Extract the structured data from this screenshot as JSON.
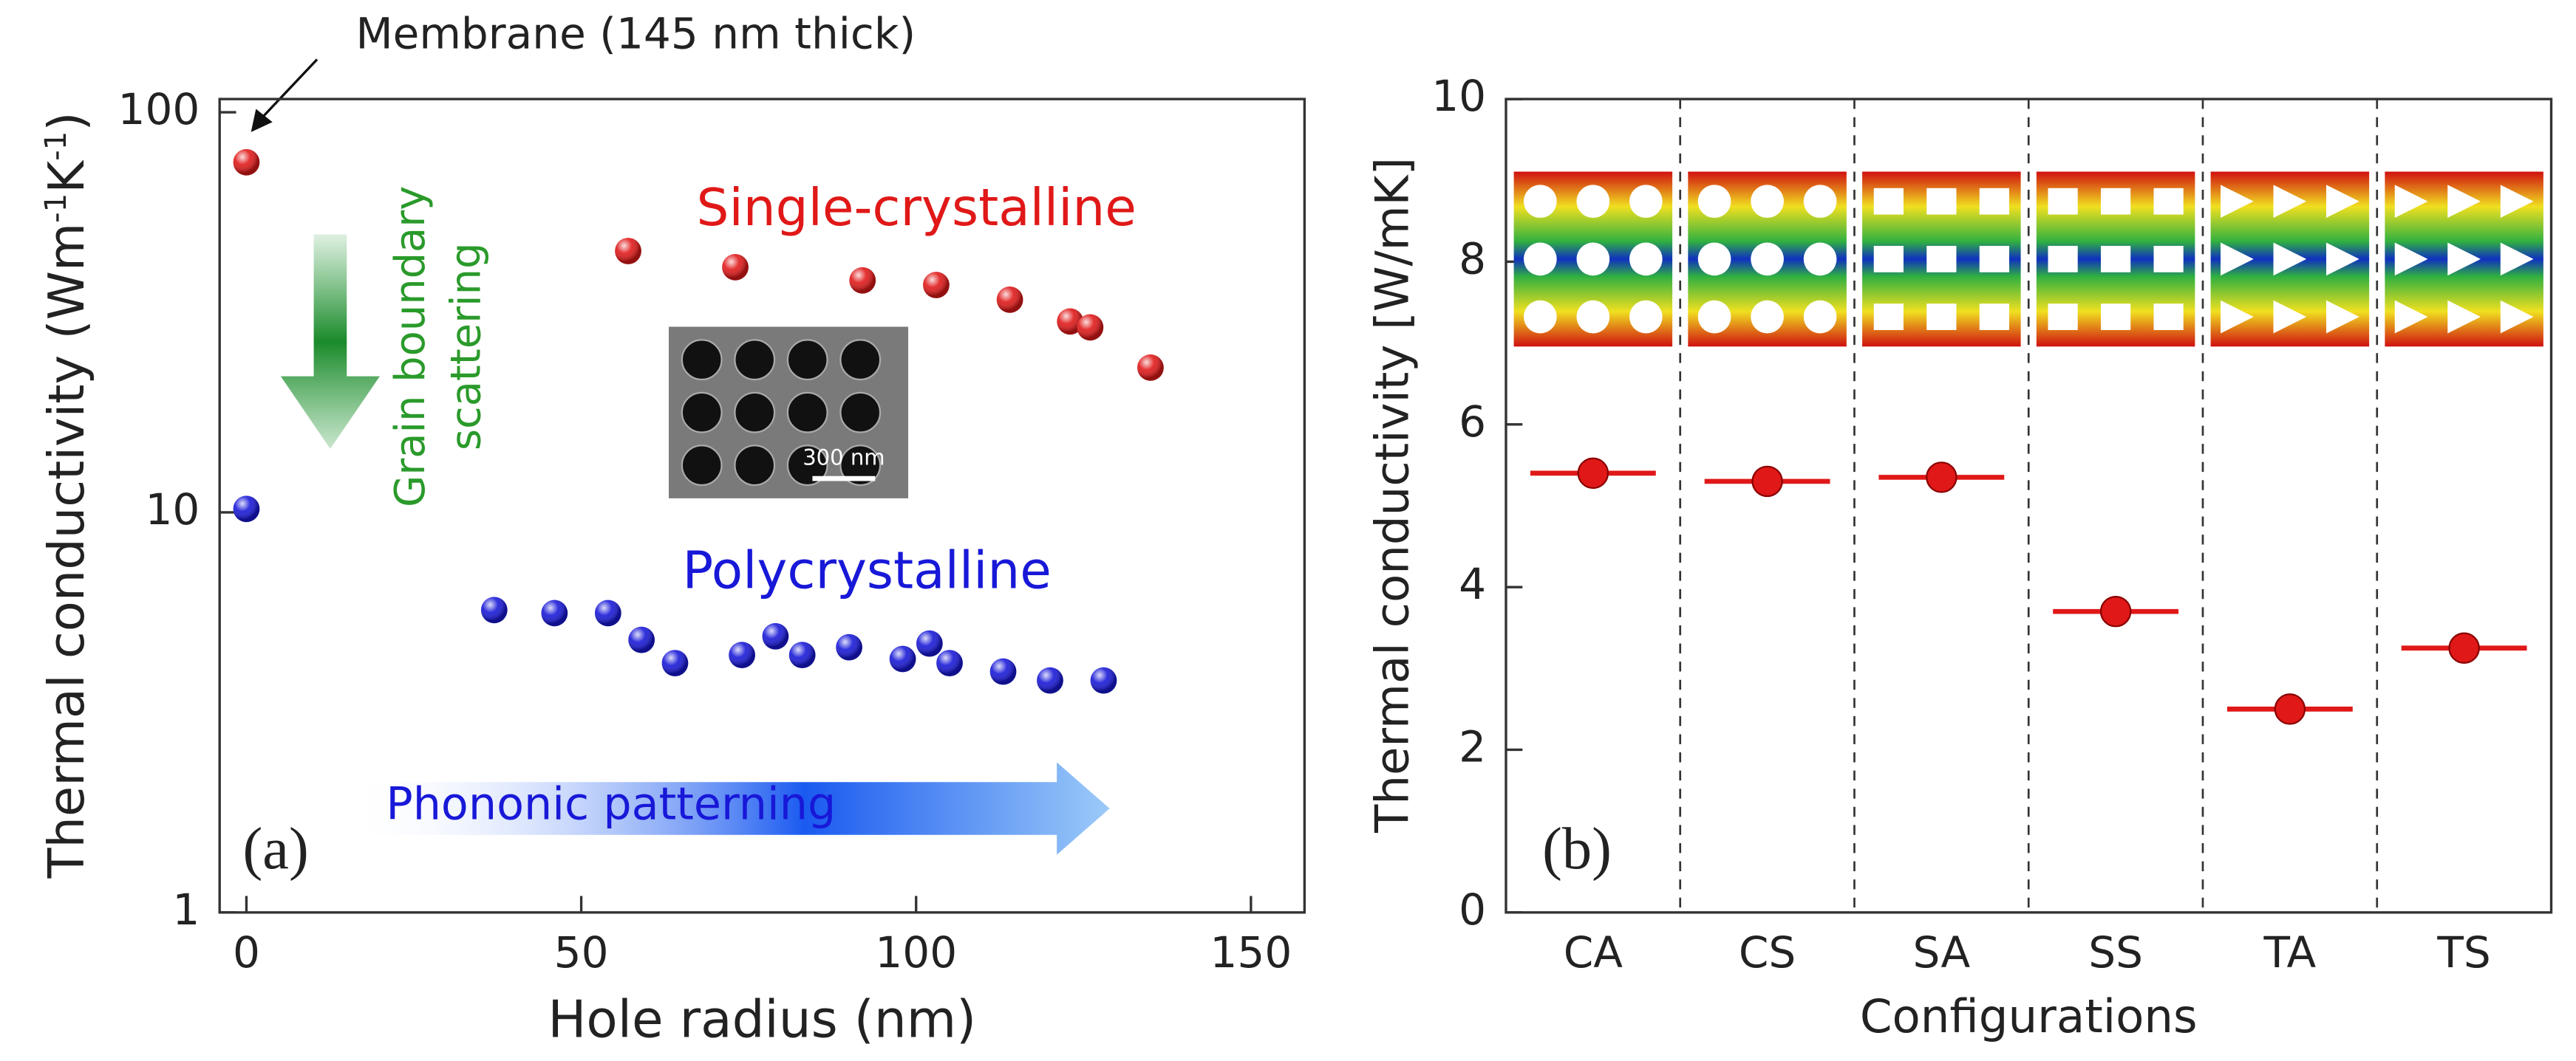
{
  "chart_data": [
    {
      "type": "scatter",
      "panel_label": "(a)",
      "xlabel": "Hole radius (nm)",
      "ylabel": [
        "Thermal conductivity (Wm",
        "-1",
        "K",
        "-1",
        ")"
      ],
      "xlim": [
        -4,
        158
      ],
      "xticks": [
        0,
        50,
        100,
        150
      ],
      "ylim": [
        1,
        100
      ],
      "yticks": [
        1,
        10,
        100
      ],
      "log_y": true,
      "annotations": {
        "membrane": "Membrane (145 nm thick)",
        "grain": [
          "Grain boundary",
          "scattering"
        ],
        "phononic": "Phononic patterning",
        "scale_bar": "300 nm"
      },
      "series": [
        {
          "name": "Single-crystalline",
          "color": "#e01818",
          "x": [
            0,
            57,
            73,
            92,
            103,
            114,
            123,
            126,
            135
          ],
          "values": [
            75,
            45,
            41,
            38,
            37,
            34,
            30,
            29,
            23
          ]
        },
        {
          "name": "Polycrystalline",
          "color": "#1818d8",
          "x": [
            0,
            37,
            46,
            54,
            59,
            64,
            74,
            79,
            83,
            90,
            98,
            102,
            105,
            113,
            120,
            128
          ],
          "values": [
            10.2,
            5.7,
            5.6,
            5.6,
            4.8,
            4.2,
            4.4,
            4.9,
            4.4,
            4.6,
            4.3,
            4.7,
            4.2,
            4.0,
            3.8,
            3.8
          ]
        }
      ]
    },
    {
      "type": "dot",
      "panel_label": "(b)",
      "xlabel": "Configurations",
      "ylabel": "Thermal conductivity [W/mK]",
      "categories": [
        "CA",
        "CS",
        "SA",
        "SS",
        "TA",
        "TS"
      ],
      "values": [
        5.4,
        5.3,
        5.35,
        3.7,
        2.5,
        3.25
      ],
      "color": "#e01818",
      "ylim": [
        0,
        10
      ],
      "yticks": [
        0,
        2,
        4,
        6,
        8,
        10
      ]
    }
  ]
}
